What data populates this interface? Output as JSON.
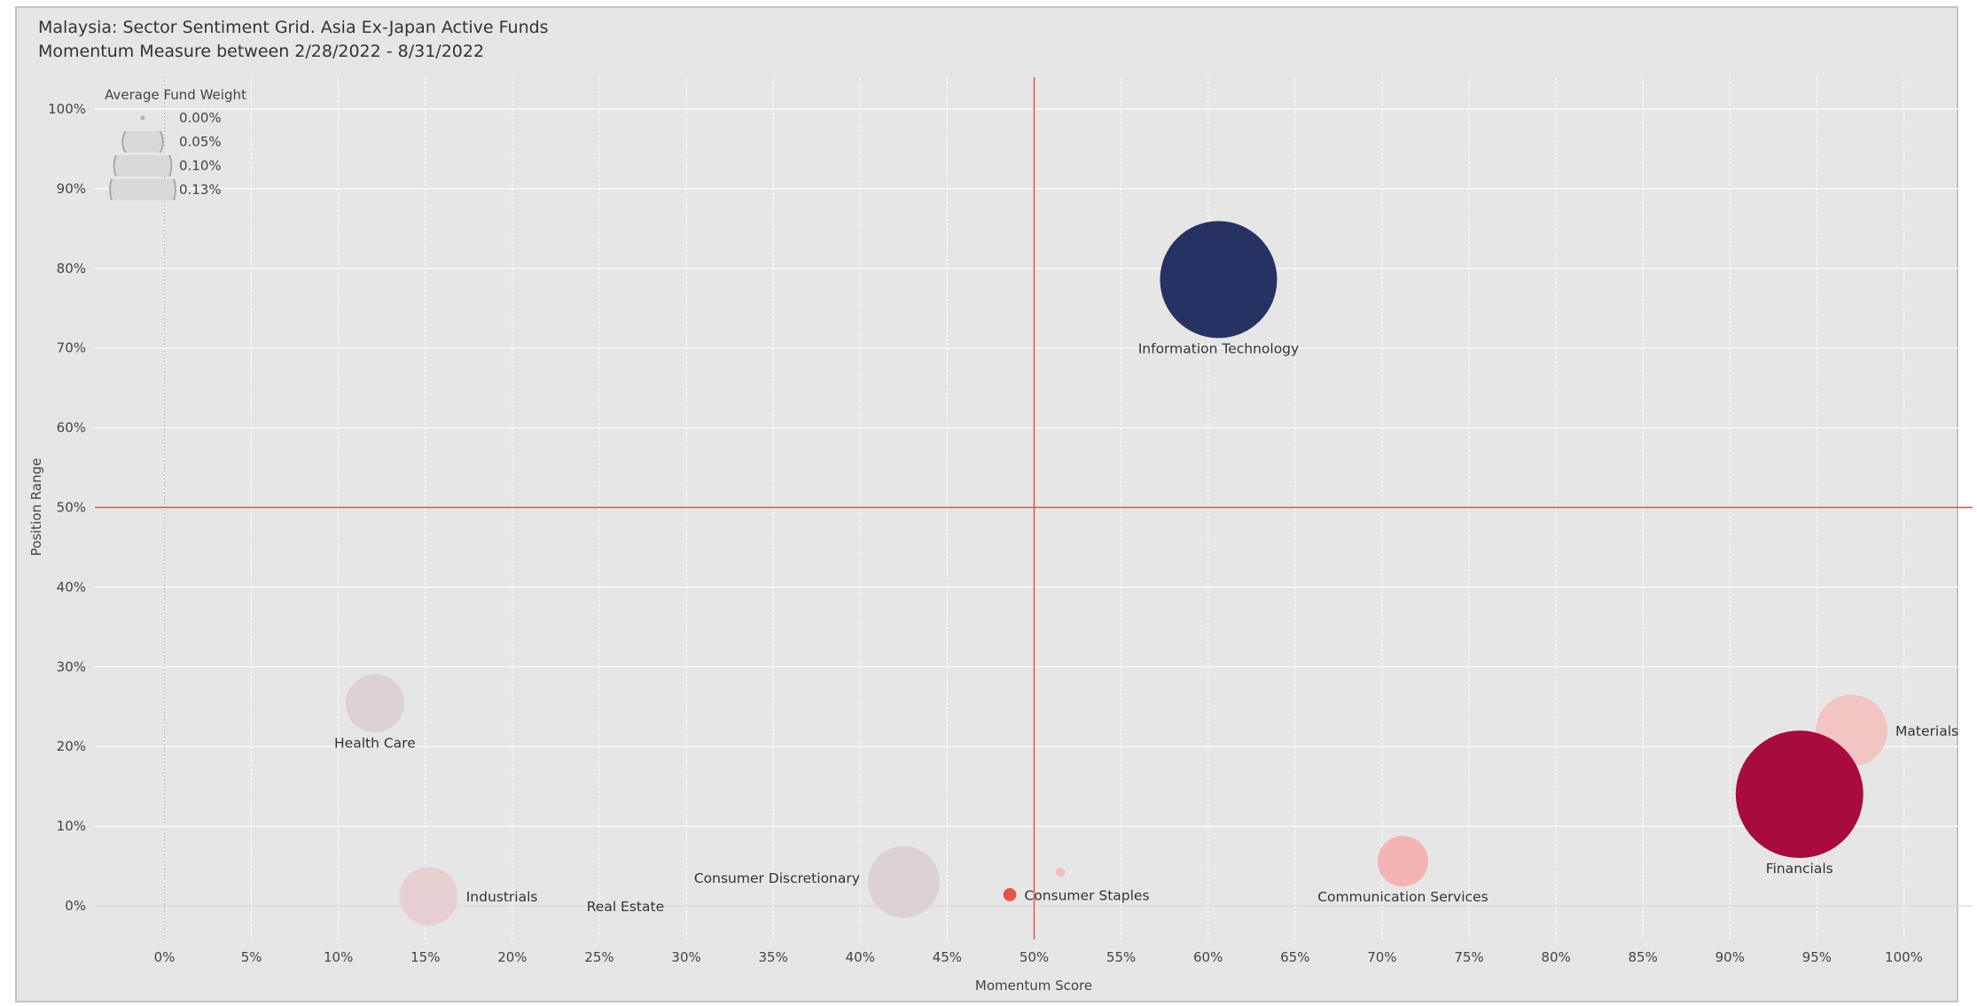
{
  "title": "Malaysia:  Sector Sentiment Grid.  Asia Ex-Japan Active Funds",
  "subtitle": "Momentum Measure between 2/28/2022 - 8/31/2022",
  "chart_data": {
    "type": "scatter",
    "xlabel": "Momentum Score",
    "ylabel": "Position Range",
    "xlim": [
      -4,
      104
    ],
    "ylim": [
      -4,
      104
    ],
    "x_ticks": [
      0,
      5,
      10,
      15,
      20,
      25,
      30,
      35,
      40,
      45,
      50,
      55,
      60,
      65,
      70,
      75,
      80,
      85,
      90,
      95,
      100
    ],
    "x_tick_labels": [
      "0%",
      "5%",
      "10%",
      "15%",
      "20%",
      "25%",
      "30%",
      "35%",
      "40%",
      "45%",
      "50%",
      "55%",
      "60%",
      "65%",
      "70%",
      "75%",
      "80%",
      "85%",
      "90%",
      "95%",
      "100%"
    ],
    "y_ticks": [
      0,
      10,
      20,
      30,
      40,
      50,
      60,
      70,
      80,
      90,
      100
    ],
    "y_tick_labels": [
      "0%",
      "10%",
      "20%",
      "30%",
      "40%",
      "50%",
      "60%",
      "70%",
      "80%",
      "90%",
      "100%"
    ],
    "reference_lines": {
      "x": 50,
      "y": 50,
      "color": "#e84a4a"
    },
    "grid": true,
    "size_legend": {
      "title": "Average Fund Weight",
      "placement": "top-left",
      "entries": [
        {
          "label": "0.00%",
          "value": 0.0
        },
        {
          "label": "0.05%",
          "value": 0.05
        },
        {
          "label": "0.10%",
          "value": 0.1
        },
        {
          "label": "0.13%",
          "value": 0.13
        }
      ]
    },
    "points": [
      {
        "name": "Information Technology",
        "x": 60.6,
        "y": 78.6,
        "weight": 0.16,
        "color": "#263262",
        "label_pos": "below"
      },
      {
        "name": "Health Care",
        "x": 12.1,
        "y": 25.4,
        "weight": 0.04,
        "color": "#dcd2d4",
        "label_pos": "below"
      },
      {
        "name": "Materials",
        "x": 97.0,
        "y": 22.0,
        "weight": 0.06,
        "color": "#f3c4c4",
        "label_pos": "right"
      },
      {
        "name": "Financials",
        "x": 94.0,
        "y": 14.0,
        "weight": 0.19,
        "color": "#a80c3c",
        "label_pos": "below"
      },
      {
        "name": "Communication Services",
        "x": 71.2,
        "y": 5.6,
        "weight": 0.03,
        "color": "#f4b4b4",
        "label_pos": "below"
      },
      {
        "name": "Consumer Discretionary",
        "x": 42.5,
        "y": 3.0,
        "weight": 0.06,
        "color": "#dcd2d4",
        "label_pos": "left"
      },
      {
        "name": "Industrials",
        "x": 15.2,
        "y": 1.2,
        "weight": 0.04,
        "color": "#e8d0d2",
        "label_pos": "right"
      },
      {
        "name": "Consumer Staples",
        "x": 48.6,
        "y": 1.4,
        "weight": 0.002,
        "color": "#e8524c",
        "label_pos": "right"
      },
      {
        "name": "Real Estate",
        "x": 26.5,
        "y": 0.0,
        "weight": 0.0,
        "color": "#e6e6e6",
        "label_pos": "center"
      },
      {
        "name": "",
        "x": 51.5,
        "y": 4.2,
        "weight": 0.001,
        "color": "#f0c0c0",
        "label_pos": "none"
      }
    ]
  }
}
